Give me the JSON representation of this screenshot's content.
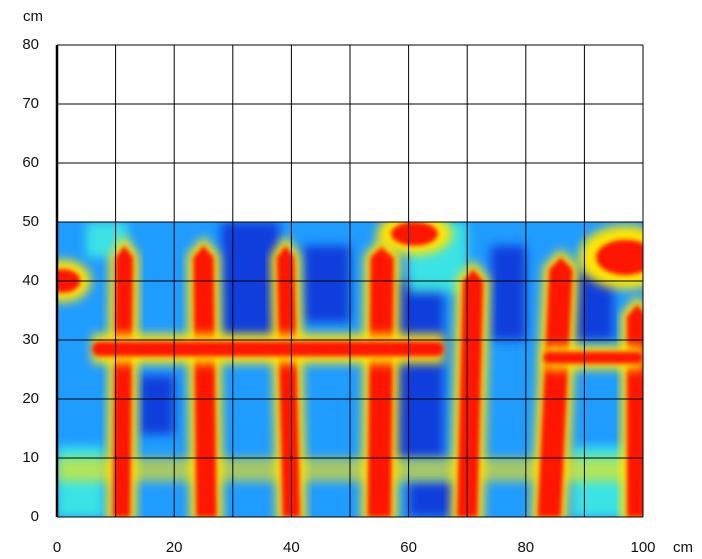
{
  "chart_data": {
    "type": "heatmap",
    "xlabel": "cm",
    "ylabel": "cm",
    "xlim": [
      0,
      100
    ],
    "ylim": [
      0,
      80
    ],
    "xticks": [
      0,
      20,
      40,
      60,
      80,
      100
    ],
    "yticks": [
      0,
      10,
      20,
      30,
      40,
      50,
      60,
      70,
      80
    ],
    "xgrid": [
      0,
      10,
      20,
      30,
      40,
      50,
      60,
      70,
      80,
      90,
      100
    ],
    "scan_ylim": [
      0,
      50
    ],
    "colors": {
      "background": "#1f9cff",
      "cold": "#0b2fd6",
      "warm": "#3ff0e0",
      "hot": "#ff1800",
      "glow": "#ffe600"
    },
    "cold_regions": [
      [
        28,
        38,
        30,
        50
      ],
      [
        42,
        50,
        33,
        46
      ],
      [
        57,
        66,
        10,
        40
      ],
      [
        74,
        80,
        30,
        46
      ],
      [
        88,
        95,
        30,
        42
      ],
      [
        14,
        20,
        14,
        24
      ],
      [
        60,
        68,
        0,
        6
      ]
    ],
    "warm_regions": [
      [
        0,
        8,
        0,
        12
      ],
      [
        88,
        100,
        0,
        12
      ],
      [
        60,
        70,
        38,
        50
      ],
      [
        5,
        12,
        44,
        50
      ]
    ],
    "vertical_streaks": [
      {
        "xb": 11,
        "xt": 11.5,
        "yt": 46,
        "w": 3
      },
      {
        "xb": 25.5,
        "xt": 25,
        "yt": 46,
        "w": 3.5
      },
      {
        "xb": 40,
        "xt": 39,
        "yt": 46,
        "w": 3
      },
      {
        "xb": 55,
        "xt": 55.5,
        "yt": 46,
        "w": 4
      },
      {
        "xb": 70,
        "xt": 71,
        "yt": 42,
        "w": 3.5
      },
      {
        "xb": 84,
        "xt": 86,
        "yt": 44,
        "w": 4
      },
      {
        "xb": 99,
        "xt": 99,
        "yt": 36,
        "w": 3.5
      }
    ],
    "horizontal_streaks": [
      {
        "x0": 6,
        "x1": 66,
        "y": 28.5,
        "w": 2.5
      },
      {
        "x0": 83,
        "x1": 100,
        "y": 27,
        "w": 2
      }
    ],
    "faint_streaks": [
      {
        "x0": 0,
        "x1": 100,
        "y": 8,
        "w": 2
      }
    ],
    "hot_spots": [
      {
        "x": 1,
        "y": 40,
        "rx": 3,
        "ry": 2
      },
      {
        "x": 61,
        "y": 48,
        "rx": 4,
        "ry": 2
      },
      {
        "x": 97,
        "y": 44,
        "rx": 5,
        "ry": 3
      }
    ]
  }
}
